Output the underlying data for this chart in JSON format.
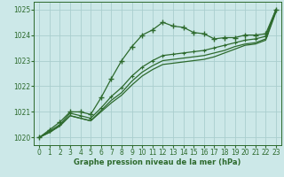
{
  "x": [
    0,
    1,
    2,
    3,
    4,
    5,
    6,
    7,
    8,
    9,
    10,
    11,
    12,
    13,
    14,
    15,
    16,
    17,
    18,
    19,
    20,
    21,
    22,
    23
  ],
  "line1": [
    1020.0,
    1020.3,
    1020.6,
    1021.0,
    1021.0,
    1020.9,
    1021.55,
    1022.3,
    1023.0,
    1023.55,
    1024.0,
    1024.2,
    1024.5,
    1024.35,
    1024.3,
    1024.1,
    1024.05,
    1023.85,
    1023.9,
    1023.9,
    1024.0,
    1024.0,
    1024.05,
    1025.0
  ],
  "line2": [
    1020.0,
    1020.25,
    1020.5,
    1020.95,
    1020.85,
    1020.75,
    1021.15,
    1021.6,
    1021.95,
    1022.4,
    1022.75,
    1023.0,
    1023.2,
    1023.25,
    1023.3,
    1023.35,
    1023.4,
    1023.5,
    1023.6,
    1023.7,
    1023.8,
    1023.85,
    1023.95,
    1025.0
  ],
  "line3": [
    1020.0,
    1020.2,
    1020.45,
    1020.85,
    1020.75,
    1020.65,
    1021.05,
    1021.45,
    1021.75,
    1022.2,
    1022.55,
    1022.8,
    1023.0,
    1023.05,
    1023.1,
    1023.15,
    1023.2,
    1023.3,
    1023.4,
    1023.55,
    1023.65,
    1023.7,
    1023.85,
    1024.95
  ],
  "line4": [
    1020.0,
    1020.2,
    1020.45,
    1020.85,
    1020.75,
    1020.65,
    1021.0,
    1021.35,
    1021.65,
    1022.05,
    1022.4,
    1022.65,
    1022.85,
    1022.9,
    1022.95,
    1023.0,
    1023.05,
    1023.15,
    1023.3,
    1023.45,
    1023.6,
    1023.65,
    1023.8,
    1024.9
  ],
  "ylim": [
    1019.7,
    1025.3
  ],
  "xlim": [
    -0.5,
    23.5
  ],
  "yticks": [
    1020,
    1021,
    1022,
    1023,
    1024,
    1025
  ],
  "xticks": [
    0,
    1,
    2,
    3,
    4,
    5,
    6,
    7,
    8,
    9,
    10,
    11,
    12,
    13,
    14,
    15,
    16,
    17,
    18,
    19,
    20,
    21,
    22,
    23
  ],
  "xlabel": "Graphe pression niveau de la mer (hPa)",
  "line_color": "#2d6a2d",
  "bg_color": "#cce8e8",
  "grid_color": "#aacece",
  "markersize": 4,
  "linewidth": 0.9,
  "tick_labelsize": 5.5,
  "xlabel_fontsize": 6.0
}
